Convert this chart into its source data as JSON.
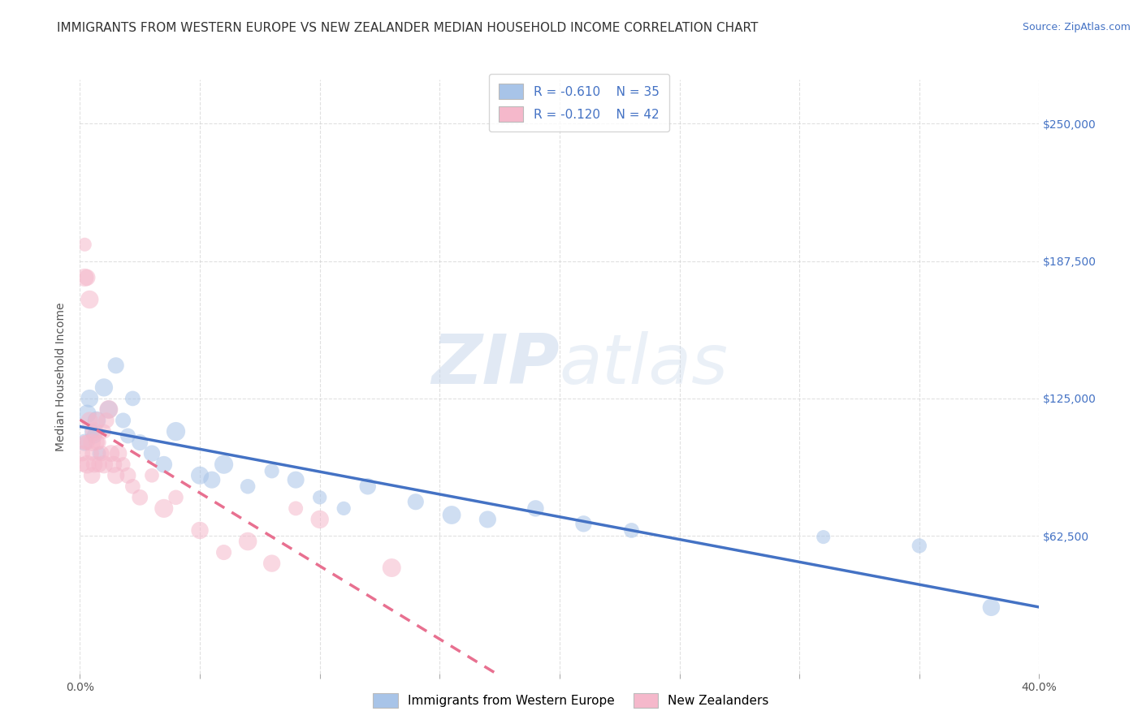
{
  "title": "IMMIGRANTS FROM WESTERN EUROPE VS NEW ZEALANDER MEDIAN HOUSEHOLD INCOME CORRELATION CHART",
  "source": "Source: ZipAtlas.com",
  "ylabel": "Median Household Income",
  "watermark": "ZIPatlas",
  "legend_r1": "-0.610",
  "legend_n1": "35",
  "legend_r2": "-0.120",
  "legend_n2": "42",
  "xlim": [
    0.0,
    0.4
  ],
  "ylim": [
    0,
    270000
  ],
  "xticks": [
    0.0,
    0.05,
    0.1,
    0.15,
    0.2,
    0.25,
    0.3,
    0.35,
    0.4
  ],
  "xticklabels": [
    "0.0%",
    "",
    "",
    "",
    "",
    "",
    "",
    "",
    "40.0%"
  ],
  "ytick_positions": [
    62500,
    125000,
    187500,
    250000
  ],
  "ytick_labels": [
    "$62,500",
    "$125,000",
    "$187,500",
    "$250,000"
  ],
  "blue_color": "#a8c4e8",
  "pink_color": "#f5b8cb",
  "blue_line_color": "#4472c4",
  "pink_line_color": "#e87090",
  "grid_color": "#cccccc",
  "background_color": "#ffffff",
  "scatter_blue_x": [
    0.002,
    0.003,
    0.004,
    0.005,
    0.006,
    0.007,
    0.008,
    0.01,
    0.012,
    0.015,
    0.018,
    0.02,
    0.022,
    0.025,
    0.03,
    0.035,
    0.04,
    0.05,
    0.055,
    0.06,
    0.07,
    0.08,
    0.09,
    0.1,
    0.11,
    0.12,
    0.14,
    0.155,
    0.17,
    0.19,
    0.21,
    0.23,
    0.31,
    0.35,
    0.38
  ],
  "scatter_blue_y": [
    105000,
    118000,
    125000,
    110000,
    108000,
    115000,
    100000,
    130000,
    120000,
    140000,
    115000,
    108000,
    125000,
    105000,
    100000,
    95000,
    110000,
    90000,
    88000,
    95000,
    85000,
    92000,
    88000,
    80000,
    75000,
    85000,
    78000,
    72000,
    70000,
    75000,
    68000,
    65000,
    62000,
    58000,
    30000
  ],
  "scatter_pink_x": [
    0.001,
    0.001,
    0.002,
    0.002,
    0.002,
    0.003,
    0.003,
    0.003,
    0.004,
    0.004,
    0.005,
    0.005,
    0.005,
    0.006,
    0.006,
    0.007,
    0.007,
    0.008,
    0.008,
    0.009,
    0.01,
    0.01,
    0.011,
    0.012,
    0.013,
    0.014,
    0.015,
    0.016,
    0.018,
    0.02,
    0.022,
    0.025,
    0.03,
    0.035,
    0.04,
    0.05,
    0.06,
    0.07,
    0.08,
    0.09,
    0.1,
    0.13
  ],
  "scatter_pink_y": [
    95000,
    100000,
    195000,
    180000,
    105000,
    105000,
    95000,
    180000,
    170000,
    115000,
    105000,
    100000,
    90000,
    95000,
    110000,
    105000,
    115000,
    105000,
    95000,
    100000,
    110000,
    95000,
    115000,
    120000,
    100000,
    95000,
    90000,
    100000,
    95000,
    90000,
    85000,
    80000,
    90000,
    75000,
    80000,
    65000,
    55000,
    60000,
    50000,
    75000,
    70000,
    48000
  ],
  "title_fontsize": 11,
  "axis_label_fontsize": 10,
  "tick_fontsize": 10,
  "source_fontsize": 9,
  "legend_fontsize": 11,
  "marker_size": 200,
  "marker_alpha": 0.55,
  "line_width": 2.5
}
